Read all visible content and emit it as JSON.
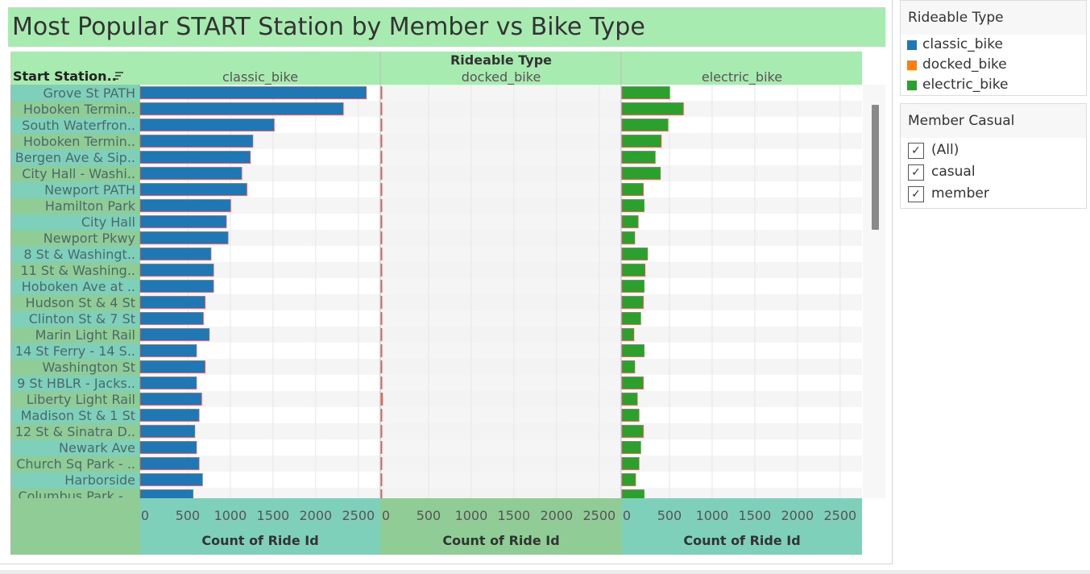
{
  "dashboard": {
    "title": "Most Popular START Station by Member vs Bike Type"
  },
  "legend": {
    "title": "Rideable Type",
    "items": [
      {
        "label": "classic_bike",
        "color": "#1f77b4"
      },
      {
        "label": "docked_bike",
        "color": "#ff7f0e"
      },
      {
        "label": "electric_bike",
        "color": "#2ca02c"
      }
    ]
  },
  "filter": {
    "title": "Member Casual",
    "items": [
      {
        "label": "(All)",
        "checked": true
      },
      {
        "label": "casual",
        "checked": true
      },
      {
        "label": "member",
        "checked": true
      }
    ]
  },
  "chart_data": {
    "type": "bar",
    "orientation": "horizontal",
    "column_header": "Rideable Type",
    "row_header": "Start Station..",
    "xlabel": "Count of Ride Id",
    "xlim": [
      0,
      2700
    ],
    "xticks": [
      0,
      500,
      1000,
      1500,
      2000,
      2500
    ],
    "grid": true,
    "categories": [
      "Grove St PATH",
      "Hoboken Termin..",
      "South Waterfron..",
      "Hoboken Termin..",
      "Bergen Ave & Sip..",
      "City Hall - Washi..",
      "Newport PATH",
      "Hamilton Park",
      "City Hall",
      "Newport Pkwy",
      "8 St & Washingt..",
      "11 St & Washing..",
      "Hoboken Ave at ..",
      "Hudson St & 4 St",
      "Clinton St & 7 St",
      "Marin Light Rail",
      "14 St Ferry - 14 S..",
      "Washington St",
      "9 St HBLR - Jacks..",
      "Liberty Light Rail",
      "Madison St & 1 St",
      "12 St & Sinatra D..",
      "Newark Ave",
      "Church Sq Park - ..",
      "Harborside",
      "Columbus Park - .."
    ],
    "series": [
      {
        "name": "classic_bike",
        "color": "#1f77b4",
        "values": [
          2650,
          2380,
          1570,
          1320,
          1290,
          1190,
          1250,
          1060,
          1010,
          1030,
          830,
          860,
          860,
          760,
          740,
          810,
          660,
          760,
          660,
          720,
          690,
          640,
          660,
          690,
          730,
          620
        ]
      },
      {
        "name": "docked_bike",
        "color": "#ff7f0e",
        "values": [
          8,
          6,
          8,
          6,
          6,
          6,
          6,
          6,
          6,
          6,
          6,
          6,
          6,
          6,
          6,
          6,
          6,
          6,
          6,
          16,
          6,
          6,
          6,
          6,
          6,
          6
        ]
      },
      {
        "name": "electric_bike",
        "color": "#2ca02c",
        "values": [
          560,
          720,
          540,
          460,
          390,
          450,
          250,
          260,
          190,
          150,
          300,
          270,
          260,
          250,
          220,
          140,
          260,
          150,
          250,
          180,
          200,
          250,
          220,
          200,
          160,
          260
        ]
      }
    ]
  }
}
